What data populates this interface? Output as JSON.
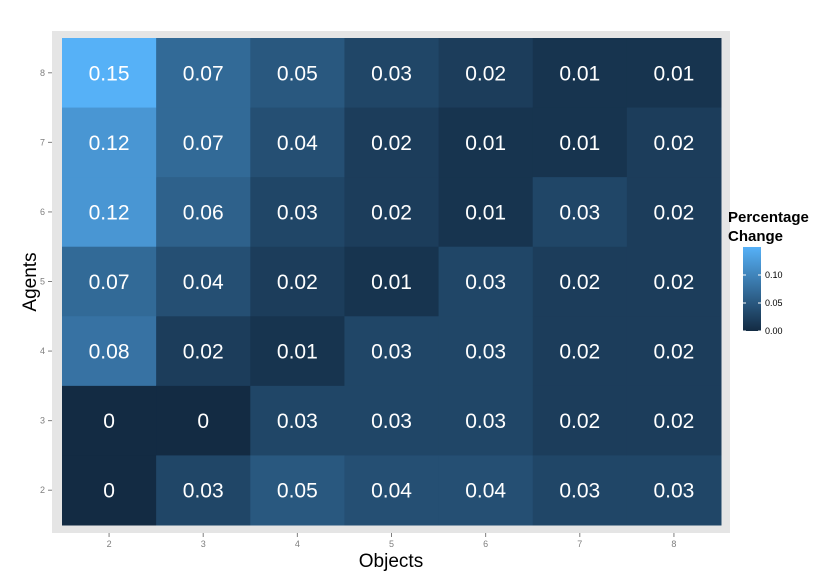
{
  "chart_data": {
    "type": "heatmap",
    "xlabel": "Objects",
    "ylabel": "Agents",
    "x": [
      2,
      3,
      4,
      5,
      6,
      7,
      8
    ],
    "y": [
      8,
      7,
      6,
      5,
      4,
      3,
      2
    ],
    "values": [
      [
        0.15,
        0.07,
        0.05,
        0.03,
        0.02,
        0.01,
        0.01
      ],
      [
        0.12,
        0.07,
        0.04,
        0.02,
        0.01,
        0.01,
        0.02
      ],
      [
        0.12,
        0.06,
        0.03,
        0.02,
        0.01,
        0.03,
        0.02
      ],
      [
        0.07,
        0.04,
        0.02,
        0.01,
        0.03,
        0.02,
        0.02
      ],
      [
        0.08,
        0.02,
        0.01,
        0.03,
        0.03,
        0.02,
        0.02
      ],
      [
        0,
        0,
        0.03,
        0.03,
        0.03,
        0.02,
        0.02
      ],
      [
        0,
        0.03,
        0.05,
        0.04,
        0.04,
        0.03,
        0.03
      ]
    ],
    "cell_labels": [
      [
        "0.15",
        "0.07",
        "0.05",
        "0.03",
        "0.02",
        "0.01",
        "0.01"
      ],
      [
        "0.12",
        "0.07",
        "0.04",
        "0.02",
        "0.01",
        "0.01",
        "0.02"
      ],
      [
        "0.12",
        "0.06",
        "0.03",
        "0.02",
        "0.01",
        "0.03",
        "0.02"
      ],
      [
        "0.07",
        "0.04",
        "0.02",
        "0.01",
        "0.03",
        "0.02",
        "0.02"
      ],
      [
        "0.08",
        "0.02",
        "0.01",
        "0.03",
        "0.03",
        "0.02",
        "0.02"
      ],
      [
        "0",
        "0",
        "0.03",
        "0.03",
        "0.03",
        "0.02",
        "0.02"
      ],
      [
        "0",
        "0.03",
        "0.05",
        "0.04",
        "0.04",
        "0.03",
        "0.03"
      ]
    ],
    "legend": {
      "title_lines": [
        "Percentage",
        "Change"
      ],
      "ticks": [
        0.0,
        0.05,
        0.1
      ],
      "tick_labels": [
        "0.00",
        "0.05",
        "0.10"
      ],
      "range": [
        0,
        0.15
      ],
      "placement": "right"
    },
    "colors": {
      "low": "#132b43",
      "high": "#56b1f7",
      "panel": "#e5e5e5"
    },
    "grid": false
  }
}
